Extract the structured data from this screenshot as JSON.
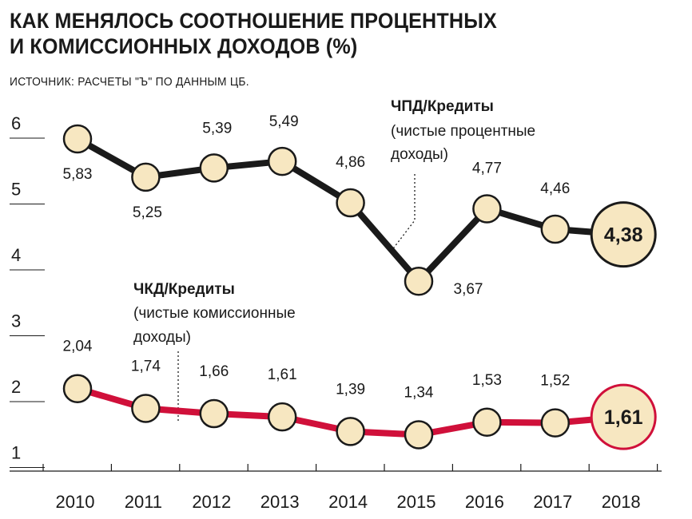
{
  "header": {
    "title_line1": "КАК МЕНЯЛОСЬ СООТНОШЕНИЕ ПРОЦЕНТНЫХ",
    "title_line2": "И КОМИССИОННЫХ ДОХОДОВ (%)",
    "source": "ИСТОЧНИК: РАСЧЕТЫ \"Ъ\" ПО ДАННЫМ ЦБ."
  },
  "annotations": {
    "interest": {
      "title": "ЧПД/Кредиты",
      "line1": "(чистые процентные",
      "line2": "доходы)"
    },
    "commission": {
      "title": "ЧКД/Кредиты",
      "line1": "(чистые комиссионные",
      "line2": "доходы)"
    }
  },
  "chart_data": {
    "type": "line",
    "title": "КАК МЕНЯЛОСЬ СООТНОШЕНИЕ ПРОЦЕНТНЫХ И КОМИССИОННЫХ ДОХОДОВ (%)",
    "x": [
      "2010",
      "2011",
      "2012",
      "2013",
      "2014",
      "2015",
      "2016",
      "2017",
      "2018"
    ],
    "yticks": [
      "1",
      "2",
      "3",
      "4",
      "5",
      "6"
    ],
    "ylim": [
      1,
      6
    ],
    "grid": false,
    "series": [
      {
        "name": "ЧПД/Кредиты",
        "values": [
          5.83,
          5.25,
          5.39,
          5.49,
          4.86,
          3.67,
          4.77,
          4.46,
          4.38
        ],
        "labels": [
          "5,83",
          "5,25",
          "5,39",
          "5,49",
          "4,86",
          "3,67",
          "4,77",
          "4,46",
          "4,38"
        ],
        "color": "#1a1a1a"
      },
      {
        "name": "ЧКД/Кредиты",
        "values": [
          2.04,
          1.74,
          1.66,
          1.61,
          1.39,
          1.34,
          1.53,
          1.52,
          1.61
        ],
        "labels": [
          "2,04",
          "1,74",
          "1,66",
          "1,61",
          "1,39",
          "1,34",
          "1,53",
          "1,52",
          "1,61"
        ],
        "color": "#d0103a"
      }
    ],
    "marker_fill": "#f7e7c1"
  }
}
